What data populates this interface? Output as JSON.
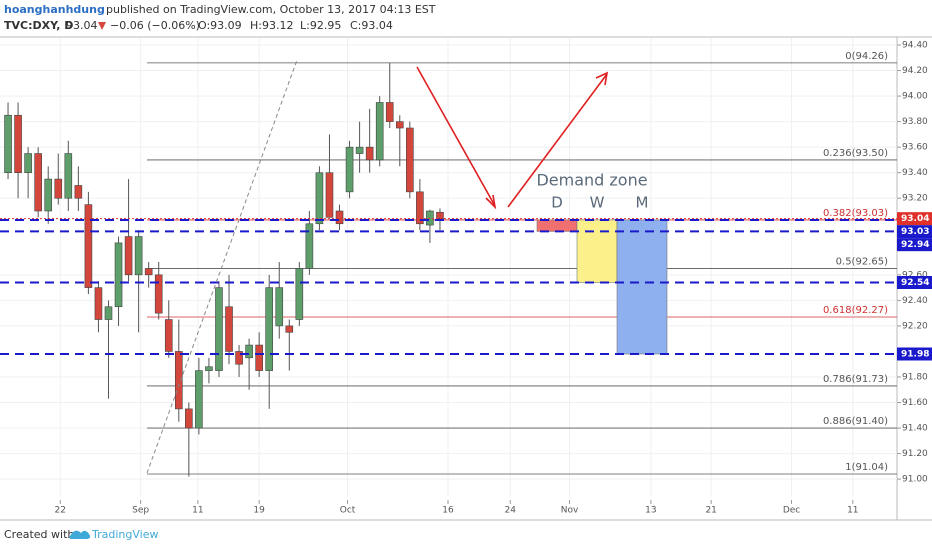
{
  "header": {
    "author": "hoanghanhdung",
    "published": "published on TradingView.com, October 13, 2017 04:13 EST",
    "symbol": "TVC:DXY, D",
    "last": "93.04",
    "change": "−0.06 (−0.06%)",
    "open": "O:93.09",
    "high": "H:93.12",
    "low": "L:92.95",
    "close": "C:93.04"
  },
  "footer": {
    "created": "Created with",
    "brand": "TradingView"
  },
  "chart_data": {
    "type": "candlestick",
    "x": [
      0,
      1,
      2,
      3,
      4,
      5,
      6,
      7,
      8,
      9,
      10,
      11,
      12,
      13,
      14,
      15,
      16,
      17,
      18,
      19,
      20,
      21,
      22,
      23,
      24,
      25,
      26,
      27,
      28,
      29,
      30,
      31,
      32,
      33,
      34,
      35,
      36,
      37,
      38,
      39,
      40,
      41,
      42,
      43
    ],
    "open": [
      93.4,
      93.85,
      93.4,
      93.55,
      93.1,
      93.35,
      93.2,
      93.3,
      93.15,
      92.5,
      92.25,
      92.35,
      92.9,
      92.6,
      92.65,
      92.6,
      92.25,
      92.0,
      91.55,
      91.4,
      91.85,
      91.85,
      92.35,
      92.0,
      91.95,
      92.05,
      91.85,
      92.2,
      92.2,
      92.25,
      92.65,
      93.0,
      93.4,
      93.1,
      93.25,
      93.55,
      93.6,
      93.5,
      93.95,
      93.8,
      93.75,
      93.25,
      92.99,
      93.09
    ],
    "high": [
      93.95,
      93.95,
      93.6,
      93.6,
      93.45,
      93.55,
      93.65,
      93.45,
      93.25,
      92.55,
      92.4,
      92.9,
      93.35,
      92.95,
      92.7,
      92.7,
      92.4,
      92.25,
      91.6,
      91.95,
      91.95,
      92.55,
      92.6,
      92.05,
      92.1,
      92.15,
      92.6,
      92.7,
      92.25,
      92.7,
      93.1,
      93.45,
      93.7,
      93.15,
      93.65,
      93.8,
      93.9,
      94.0,
      94.26,
      93.85,
      93.8,
      93.35,
      93.11,
      93.12
    ],
    "low": [
      93.35,
      93.2,
      93.2,
      93.05,
      93.0,
      93.15,
      93.1,
      93.1,
      92.45,
      92.15,
      91.63,
      92.2,
      92.55,
      92.15,
      92.5,
      92.25,
      91.95,
      91.45,
      91.02,
      91.35,
      91.75,
      91.8,
      91.9,
      91.8,
      91.7,
      91.8,
      91.55,
      92.1,
      91.85,
      92.2,
      92.6,
      92.95,
      93.05,
      92.95,
      93.2,
      93.4,
      93.4,
      93.45,
      93.75,
      93.45,
      93.2,
      92.95,
      92.85,
      92.95
    ],
    "close": [
      93.85,
      93.4,
      93.55,
      93.1,
      93.35,
      93.2,
      93.55,
      93.2,
      92.5,
      92.25,
      92.35,
      92.85,
      92.6,
      92.9,
      92.6,
      92.3,
      92.0,
      91.55,
      91.4,
      91.85,
      91.88,
      92.5,
      92.0,
      91.9,
      92.05,
      91.85,
      92.5,
      92.5,
      92.15,
      92.65,
      93.0,
      93.4,
      93.05,
      93.0,
      93.6,
      93.6,
      93.5,
      93.95,
      93.8,
      93.75,
      93.25,
      93.0,
      93.1,
      93.04
    ],
    "up_color": "#5d9e6a",
    "down_color": "#d2463c",
    "xlim": [
      -0.8,
      88.5
    ],
    "xticks": [
      {
        "value": 5.2,
        "label": "22"
      },
      {
        "value": 13.2,
        "label": "Sep"
      },
      {
        "value": 18.9,
        "label": "11"
      },
      {
        "value": 25.0,
        "label": "19"
      },
      {
        "value": 33.8,
        "label": "Oct"
      },
      {
        "value": 43.8,
        "label": "16"
      },
      {
        "value": 50.0,
        "label": "24"
      },
      {
        "value": 55.9,
        "label": "Nov"
      },
      {
        "value": 64.0,
        "label": "13"
      },
      {
        "value": 70.0,
        "label": "21"
      },
      {
        "value": 78.0,
        "label": "Dec"
      },
      {
        "value": 84.1,
        "label": "11"
      }
    ],
    "ylim": [
      90.86,
      94.455
    ],
    "yticks": [
      {
        "value": 94.4,
        "label": "94.40"
      },
      {
        "value": 94.2,
        "label": "94.20"
      },
      {
        "value": 94.0,
        "label": "94.00"
      },
      {
        "value": 93.8,
        "label": "93.80"
      },
      {
        "value": 93.6,
        "label": "93.60"
      },
      {
        "value": 93.4,
        "label": "93.40"
      },
      {
        "value": 93.2,
        "label": "93.20"
      },
      {
        "value": 92.6,
        "label": "92.60"
      },
      {
        "value": 92.4,
        "label": "92.40"
      },
      {
        "value": 92.2,
        "label": "92.20"
      },
      {
        "value": 91.8,
        "label": "91.80"
      },
      {
        "value": 91.6,
        "label": "91.60"
      },
      {
        "value": 91.4,
        "label": "91.40"
      },
      {
        "value": 91.2,
        "label": "91.20"
      },
      {
        "value": 91.0,
        "label": "91.00"
      }
    ],
    "grid": true,
    "fib_levels": [
      {
        "label": "0(94.26)",
        "value": 94.26,
        "color": "#555555"
      },
      {
        "label": "0.236(93.50)",
        "value": 93.5,
        "color": "#555555"
      },
      {
        "label": "0.382(93.03)",
        "value": 93.03,
        "color": "#d03030"
      },
      {
        "label": "0.5(92.65)",
        "value": 92.65,
        "color": "#555555"
      },
      {
        "label": "0.618(92.27)",
        "value": 92.27,
        "color": "#d03030"
      },
      {
        "label": "0.786(91.73)",
        "value": 91.73,
        "color": "#555555"
      },
      {
        "label": "0.886(91.40)",
        "value": 91.4,
        "color": "#555555"
      },
      {
        "label": "1(91.04)",
        "value": 91.04,
        "color": "#555555"
      }
    ],
    "price_lines": [
      {
        "value": 93.04,
        "label": "93.04",
        "color": "#e0302a",
        "style": "dotted"
      },
      {
        "value": 93.03,
        "label": "93.03",
        "color": "#1a1acc",
        "style": "dashed"
      },
      {
        "value": 92.94,
        "label": "92.94",
        "color": "#1a1acc",
        "style": "dashed"
      },
      {
        "value": 92.54,
        "label": "92.54",
        "color": "#1a1acc",
        "style": "dashed"
      },
      {
        "value": 91.98,
        "label": "91.98",
        "color": "#1a1acc",
        "style": "dashed"
      }
    ],
    "zone_title": "Demand zone",
    "zones": [
      {
        "label": "D",
        "top": 93.03,
        "bottom": 92.94,
        "color": "#f07070"
      },
      {
        "label": "W",
        "top": 93.03,
        "bottom": 92.54,
        "color": "#fbf08a"
      },
      {
        "label": "M",
        "top": 93.03,
        "bottom": 91.98,
        "color": "#8fb0ee"
      }
    ]
  }
}
